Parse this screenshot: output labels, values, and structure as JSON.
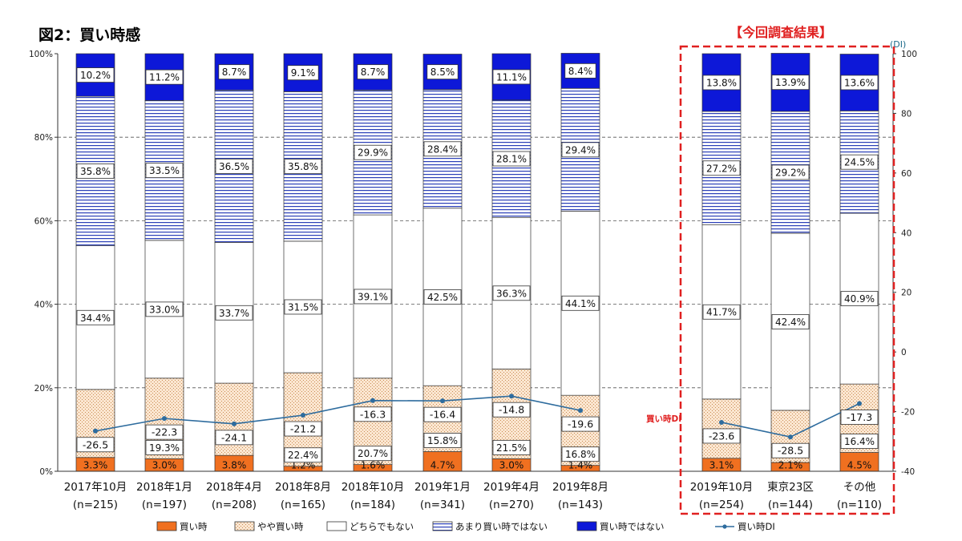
{
  "title": "図2：買い時感",
  "highlight_title": "【今回調査結果】",
  "right_axis_unit": "(DI)",
  "di_annotation": "買い時DI",
  "colors": {
    "kaidoki": "#f07020",
    "yaya": "#fbe4cc",
    "dochira": "#ffffff",
    "amari_line": "#2a3fb8",
    "kaidoki_dewanai": "#0d18d8",
    "di_line": "#2e6c9e",
    "highlight": "#e02020"
  },
  "chart_data": {
    "type": "bar",
    "stacked": true,
    "percent_stacked": true,
    "categories": [
      "2017年10月",
      "2018年1月",
      "2018年4月",
      "2018年8月",
      "2018年10月",
      "2019年1月",
      "2019年4月",
      "2019年8月",
      "2019年10月",
      "東京23区",
      "その他"
    ],
    "sample_sizes": [
      "(n=215)",
      "(n=197)",
      "(n=208)",
      "(n=165)",
      "(n=184)",
      "(n=341)",
      "(n=270)",
      "(n=143)",
      "(n=254)",
      "(n=144)",
      "(n=110)"
    ],
    "series": [
      {
        "name": "買い時",
        "values": [
          3.3,
          3.0,
          3.8,
          1.2,
          1.6,
          4.7,
          3.0,
          1.4,
          3.1,
          2.1,
          4.5
        ],
        "labels": [
          "3.3%",
          "3.0%",
          "3.8%",
          "1.2%",
          "1.6%",
          "4.7%",
          "3.0%",
          "1.4%",
          "3.1%",
          "2.1%",
          "4.5%"
        ]
      },
      {
        "name": "やや買い時",
        "values": [
          16.3,
          19.3,
          17.3,
          22.4,
          20.7,
          15.8,
          21.5,
          16.8,
          14.2,
          12.5,
          16.4
        ],
        "labels": [
          "",
          "19.3%",
          "",
          "22.4%",
          "20.7%",
          "15.8%",
          "21.5%",
          "16.8%",
          "",
          "",
          "16.4%"
        ]
      },
      {
        "name": "どちらでもない",
        "values": [
          34.4,
          33.0,
          33.7,
          31.5,
          39.1,
          42.5,
          36.3,
          44.1,
          41.7,
          42.4,
          40.9
        ],
        "labels": [
          "34.4%",
          "33.0%",
          "33.7%",
          "31.5%",
          "39.1%",
          "42.5%",
          "36.3%",
          "44.1%",
          "41.7%",
          "42.4%",
          "40.9%"
        ]
      },
      {
        "name": "あまり買い時ではない",
        "values": [
          35.8,
          33.5,
          36.5,
          35.8,
          29.9,
          28.4,
          28.1,
          29.4,
          27.2,
          29.2,
          24.5
        ],
        "labels": [
          "35.8%",
          "33.5%",
          "36.5%",
          "35.8%",
          "29.9%",
          "28.4%",
          "28.1%",
          "29.4%",
          "27.2%",
          "29.2%",
          "24.5%"
        ]
      },
      {
        "name": "買い時ではない",
        "values": [
          10.2,
          11.2,
          8.7,
          9.1,
          8.7,
          8.5,
          11.1,
          8.4,
          13.8,
          13.9,
          13.6
        ],
        "labels": [
          "10.2%",
          "11.2%",
          "8.7%",
          "9.1%",
          "8.7%",
          "8.5%",
          "11.1%",
          "8.4%",
          "13.8%",
          "13.9%",
          "13.6%"
        ]
      }
    ],
    "di_series": {
      "name": "買い時DI",
      "values": [
        -26.5,
        -22.3,
        -24.1,
        -21.2,
        -16.3,
        -16.4,
        -14.8,
        -19.6,
        -23.6,
        -28.5,
        -17.3
      ]
    },
    "left_axis": {
      "ticks": [
        "0%",
        "20%",
        "40%",
        "60%",
        "80%",
        "100%"
      ],
      "range": [
        0,
        100
      ]
    },
    "right_axis": {
      "ticks": [
        "-40",
        "-20",
        "0",
        "20",
        "40",
        "60",
        "80",
        "100"
      ],
      "range": [
        -40,
        100
      ]
    },
    "legend": [
      "買い時",
      "やや買い時",
      "どちらでもない",
      "あまり買い時ではない",
      "買い時ではない",
      "買い時DI"
    ],
    "legend_position": "bottom",
    "grid": "dashed horizontal"
  }
}
